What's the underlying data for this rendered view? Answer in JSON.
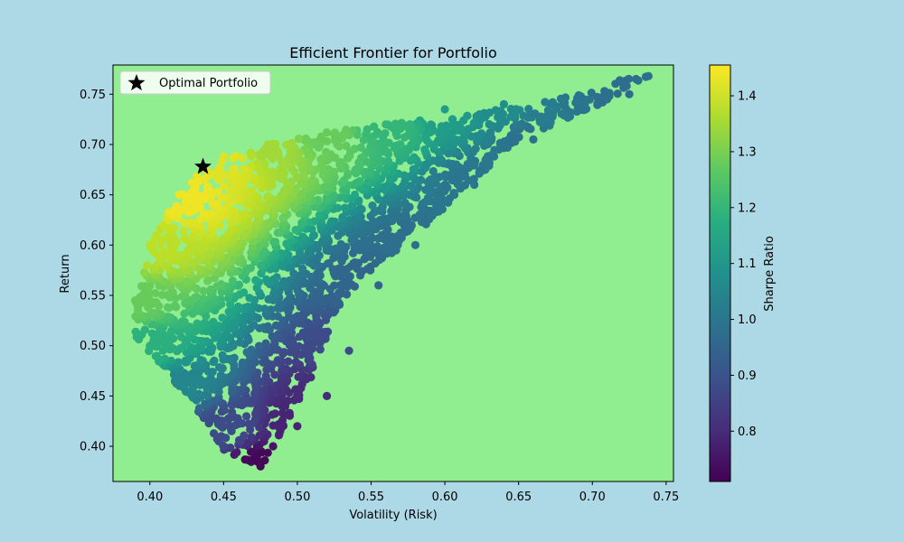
{
  "figure": {
    "background": "#add8e6"
  },
  "chart_data": {
    "type": "scatter",
    "title": "Efficient Frontier for Portfolio",
    "xlabel": "Volatility (Risk)",
    "ylabel": "Return",
    "xlim": [
      0.375,
      0.755
    ],
    "ylim": [
      0.365,
      0.779
    ],
    "xticks": [
      "0.40",
      "0.45",
      "0.50",
      "0.55",
      "0.60",
      "0.65",
      "0.70",
      "0.75"
    ],
    "xtick_values": [
      0.4,
      0.45,
      0.5,
      0.55,
      0.6,
      0.65,
      0.7,
      0.75
    ],
    "yticks": [
      "0.40",
      "0.45",
      "0.50",
      "0.55",
      "0.60",
      "0.65",
      "0.70",
      "0.75"
    ],
    "ytick_values": [
      0.4,
      0.45,
      0.5,
      0.55,
      0.6,
      0.65,
      0.7,
      0.75
    ],
    "plot_background": "#90ee90",
    "grid": false,
    "colormap": "viridis",
    "colorbar": {
      "label": "Sharpe Ratio",
      "range": [
        0.71,
        1.455
      ],
      "ticks": [
        "0.8",
        "0.9",
        "1.0",
        "1.1",
        "1.2",
        "1.3",
        "1.4"
      ],
      "tick_values": [
        0.8,
        0.9,
        1.0,
        1.1,
        1.2,
        1.3,
        1.4
      ]
    },
    "legend": {
      "placement": "upper left",
      "entries": [
        {
          "label": "Optimal Portfolio",
          "marker": "star",
          "color": "#000000"
        }
      ]
    },
    "optimal_portfolio": {
      "volatility": 0.436,
      "return": 0.678,
      "marker": "star"
    },
    "cloud_description": "Dense cloud of thousands of simulated random portfolios colored by Sharpe Ratio.",
    "cloud_boundary": {
      "upper_frontier": [
        [
          0.39,
          0.545
        ],
        [
          0.4,
          0.6
        ],
        [
          0.41,
          0.628
        ],
        [
          0.42,
          0.65
        ],
        [
          0.43,
          0.668
        ],
        [
          0.45,
          0.684
        ],
        [
          0.47,
          0.695
        ],
        [
          0.5,
          0.708
        ],
        [
          0.55,
          0.718
        ],
        [
          0.6,
          0.728
        ],
        [
          0.65,
          0.738
        ],
        [
          0.7,
          0.752
        ],
        [
          0.72,
          0.765
        ],
        [
          0.738,
          0.768
        ]
      ],
      "lower_edge": [
        [
          0.738,
          0.768
        ],
        [
          0.7,
          0.735
        ],
        [
          0.65,
          0.705
        ],
        [
          0.62,
          0.665
        ],
        [
          0.6,
          0.637
        ],
        [
          0.58,
          0.61
        ],
        [
          0.55,
          0.575
        ],
        [
          0.53,
          0.543
        ],
        [
          0.52,
          0.51
        ],
        [
          0.51,
          0.47
        ],
        [
          0.49,
          0.415
        ],
        [
          0.475,
          0.378
        ],
        [
          0.45,
          0.395
        ],
        [
          0.43,
          0.44
        ],
        [
          0.41,
          0.475
        ],
        [
          0.39,
          0.51
        ]
      ]
    },
    "sample_points": [
      {
        "x": 0.738,
        "y": 0.768,
        "sharpe": 0.98
      },
      {
        "x": 0.725,
        "y": 0.75,
        "sharpe": 0.97
      },
      {
        "x": 0.71,
        "y": 0.745,
        "sharpe": 0.98
      },
      {
        "x": 0.69,
        "y": 0.735,
        "sharpe": 1.0
      },
      {
        "x": 0.67,
        "y": 0.73,
        "sharpe": 1.02
      },
      {
        "x": 0.64,
        "y": 0.74,
        "sharpe": 1.07
      },
      {
        "x": 0.6,
        "y": 0.735,
        "sharpe": 1.12
      },
      {
        "x": 0.56,
        "y": 0.72,
        "sharpe": 1.2
      },
      {
        "x": 0.52,
        "y": 0.712,
        "sharpe": 1.28
      },
      {
        "x": 0.48,
        "y": 0.7,
        "sharpe": 1.35
      },
      {
        "x": 0.45,
        "y": 0.688,
        "sharpe": 1.42
      },
      {
        "x": 0.42,
        "y": 0.65,
        "sharpe": 1.44
      },
      {
        "x": 0.4,
        "y": 0.6,
        "sharpe": 1.38
      },
      {
        "x": 0.39,
        "y": 0.545,
        "sharpe": 1.28
      },
      {
        "x": 0.4,
        "y": 0.5,
        "sharpe": 1.18
      },
      {
        "x": 0.42,
        "y": 0.46,
        "sharpe": 1.05
      },
      {
        "x": 0.45,
        "y": 0.42,
        "sharpe": 0.88
      },
      {
        "x": 0.475,
        "y": 0.38,
        "sharpe": 0.72
      },
      {
        "x": 0.5,
        "y": 0.42,
        "sharpe": 0.78
      },
      {
        "x": 0.52,
        "y": 0.45,
        "sharpe": 0.8
      },
      {
        "x": 0.535,
        "y": 0.495,
        "sharpe": 0.88
      },
      {
        "x": 0.555,
        "y": 0.56,
        "sharpe": 0.95
      },
      {
        "x": 0.58,
        "y": 0.6,
        "sharpe": 0.98
      },
      {
        "x": 0.62,
        "y": 0.66,
        "sharpe": 1.0
      },
      {
        "x": 0.66,
        "y": 0.705,
        "sharpe": 0.98
      }
    ]
  }
}
